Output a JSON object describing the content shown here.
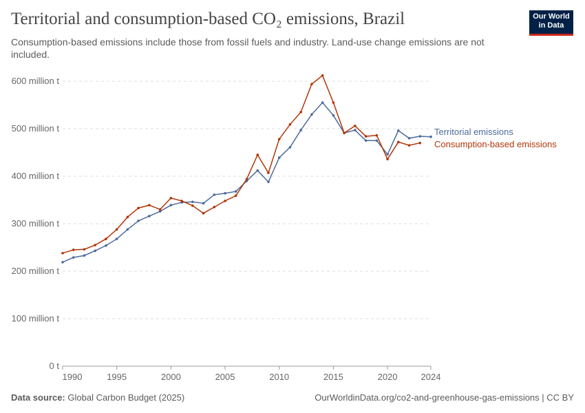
{
  "header": {
    "title": "Territorial and consumption-based CO₂ emissions, Brazil",
    "subtitle": "Consumption-based emissions include those from fossil fuels and industry. Land-use change emissions are not included.",
    "logo": "Our World in Data"
  },
  "footer": {
    "source_label": "Data source:",
    "source": "Global Carbon Budget (2025)",
    "link": "OurWorldinData.org/co2-and-greenhouse-gas-emissions | CC BY"
  },
  "chart_data": {
    "type": "line",
    "title": "Territorial and consumption-based CO₂ emissions, Brazil",
    "ylim": [
      0,
      600
    ],
    "xlim": [
      1990,
      2024
    ],
    "y_ticks": [
      0,
      100,
      200,
      300,
      400,
      500,
      600
    ],
    "y_tick_labels": [
      "0 t",
      "100 million t",
      "200 million t",
      "300 million t",
      "400 million t",
      "500 million t",
      "600 million t"
    ],
    "x_ticks": [
      1990,
      1995,
      2000,
      2005,
      2010,
      2015,
      2020,
      2024
    ],
    "x_tick_labels": [
      "1990",
      "1995",
      "2000",
      "2005",
      "2010",
      "2015",
      "2020",
      "2024"
    ],
    "grid": "horizontal dashed",
    "legend": "right, labels at line ends",
    "series": [
      {
        "name": "Territorial emissions",
        "color": "#4c6a9c",
        "x": [
          1990,
          1991,
          1992,
          1993,
          1994,
          1995,
          1996,
          1997,
          1998,
          1999,
          2000,
          2001,
          2002,
          2003,
          2004,
          2005,
          2006,
          2007,
          2008,
          2009,
          2010,
          2011,
          2012,
          2013,
          2014,
          2015,
          2016,
          2017,
          2018,
          2019,
          2020,
          2021,
          2022,
          2023,
          2024
        ],
        "values": [
          219,
          229,
          233,
          243,
          254,
          268,
          288,
          306,
          316,
          326,
          339,
          345,
          346,
          343,
          361,
          364,
          368,
          390,
          412,
          388,
          439,
          461,
          497,
          530,
          555,
          528,
          491,
          497,
          475,
          475,
          446,
          496,
          480,
          484,
          483
        ]
      },
      {
        "name": "Consumption-based emissions",
        "color": "#b13507",
        "x": [
          1990,
          1991,
          1992,
          1993,
          1994,
          1995,
          1996,
          1997,
          1998,
          1999,
          2000,
          2001,
          2002,
          2003,
          2004,
          2005,
          2006,
          2007,
          2008,
          2009,
          2010,
          2011,
          2012,
          2013,
          2014,
          2015,
          2016,
          2017,
          2018,
          2019,
          2020,
          2021,
          2022,
          2023
        ],
        "values": [
          238,
          245,
          246,
          255,
          268,
          288,
          314,
          333,
          339,
          330,
          354,
          348,
          338,
          322,
          335,
          348,
          359,
          394,
          445,
          407,
          478,
          509,
          535,
          594,
          612,
          555,
          491,
          506,
          484,
          486,
          436,
          472,
          465,
          470
        ]
      }
    ]
  }
}
